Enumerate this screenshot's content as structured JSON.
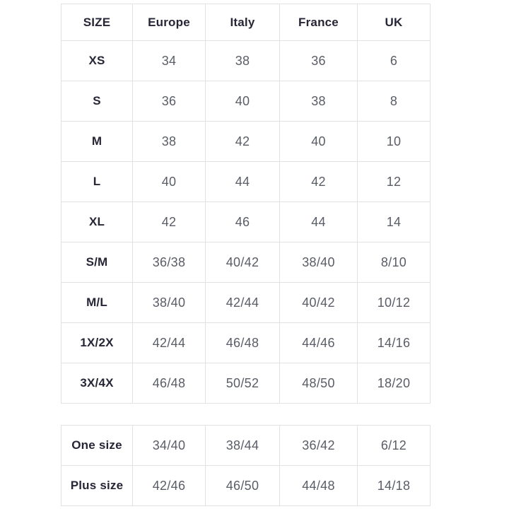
{
  "main_table": {
    "headers": {
      "size": "SIZE",
      "europe": "Europe",
      "italy": "Italy",
      "france": "France",
      "uk": "UK"
    },
    "rows": [
      {
        "size": "XS",
        "europe": "34",
        "italy": "38",
        "france": "36",
        "uk": "6"
      },
      {
        "size": "S",
        "europe": "36",
        "italy": "40",
        "france": "38",
        "uk": "8"
      },
      {
        "size": "M",
        "europe": "38",
        "italy": "42",
        "france": "40",
        "uk": "10"
      },
      {
        "size": "L",
        "europe": "40",
        "italy": "44",
        "france": "42",
        "uk": "12"
      },
      {
        "size": "XL",
        "europe": "42",
        "italy": "46",
        "france": "44",
        "uk": "14"
      },
      {
        "size": "S/M",
        "europe": "36/38",
        "italy": "40/42",
        "france": "38/40",
        "uk": "8/10"
      },
      {
        "size": "M/L",
        "europe": "38/40",
        "italy": "42/44",
        "france": "40/42",
        "uk": "10/12"
      },
      {
        "size": "1X/2X",
        "europe": "42/44",
        "italy": "46/48",
        "france": "44/46",
        "uk": "14/16"
      },
      {
        "size": "3X/4X",
        "europe": "46/48",
        "italy": "50/52",
        "france": "48/50",
        "uk": "18/20"
      }
    ]
  },
  "secondary_table": {
    "rows": [
      {
        "size": "One size",
        "europe": "34/40",
        "italy": "38/44",
        "france": "36/42",
        "uk": "6/12"
      },
      {
        "size": "Plus size",
        "europe": "42/46",
        "italy": "46/50",
        "france": "44/48",
        "uk": "14/18"
      }
    ]
  },
  "colors": {
    "background": "#ffffff",
    "border": "#e2e2e2",
    "header_text": "#262637",
    "value_text": "#5a5d66"
  }
}
